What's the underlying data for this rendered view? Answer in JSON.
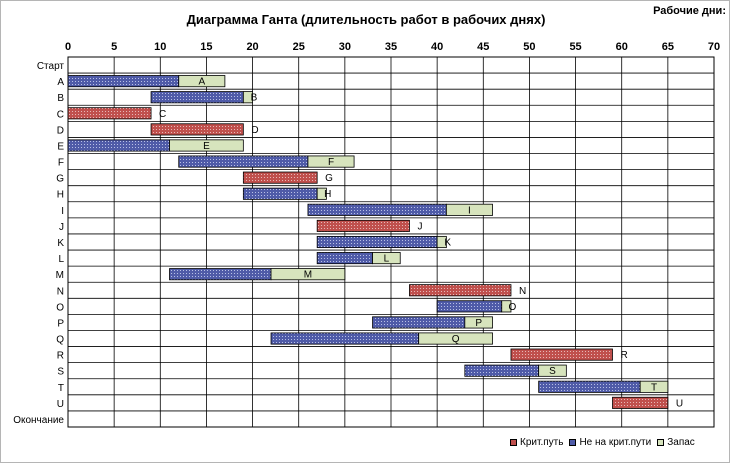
{
  "chart_data": {
    "type": "bar",
    "orientation": "horizontal-stacked",
    "title": "Диаграмма Ганта (длительность  работ в рабочих днях)",
    "axis_caption": "Рабочие дни:",
    "x_ticks": [
      0,
      5,
      10,
      15,
      20,
      25,
      30,
      35,
      40,
      45,
      50,
      55,
      60,
      65,
      70
    ],
    "xlim": [
      0,
      70
    ],
    "grid": true,
    "legend_position": "bottom-right",
    "categories": [
      "Старт",
      "A",
      "B",
      "C",
      "D",
      "E",
      "F",
      "G",
      "H",
      "I",
      "J",
      "K",
      "L",
      "M",
      "N",
      "O",
      "P",
      "Q",
      "R",
      "S",
      "T",
      "U",
      "Окончание"
    ],
    "series": [
      {
        "name": "Крит.путь",
        "color": "#c0504d",
        "pattern": "dots"
      },
      {
        "name": "Не на крит.пути",
        "color": "#4f5ba8",
        "pattern": "dots"
      },
      {
        "name": "Запас",
        "color": "#d7e4bd",
        "pattern": "solid"
      }
    ],
    "tasks": [
      {
        "name": "Старт",
        "start": 0,
        "segments": [],
        "label": ""
      },
      {
        "name": "A",
        "start": 0,
        "segments": [
          {
            "series": 1,
            "length": 12
          },
          {
            "series": 2,
            "length": 5
          }
        ],
        "label": "A"
      },
      {
        "name": "B",
        "start": 9,
        "segments": [
          {
            "series": 1,
            "length": 10
          },
          {
            "series": 2,
            "length": 1
          }
        ],
        "label": "B"
      },
      {
        "name": "C",
        "start": 0,
        "segments": [
          {
            "series": 0,
            "length": 9
          }
        ],
        "label": "C"
      },
      {
        "name": "D",
        "start": 9,
        "segments": [
          {
            "series": 0,
            "length": 10
          }
        ],
        "label": "D"
      },
      {
        "name": "E",
        "start": 0,
        "segments": [
          {
            "series": 1,
            "length": 11
          },
          {
            "series": 2,
            "length": 8
          }
        ],
        "label": "E"
      },
      {
        "name": "F",
        "start": 12,
        "segments": [
          {
            "series": 1,
            "length": 14
          },
          {
            "series": 2,
            "length": 5
          }
        ],
        "label": "F"
      },
      {
        "name": "G",
        "start": 19,
        "segments": [
          {
            "series": 0,
            "length": 8
          }
        ],
        "label": "G"
      },
      {
        "name": "H",
        "start": 19,
        "segments": [
          {
            "series": 1,
            "length": 8
          },
          {
            "series": 2,
            "length": 1
          }
        ],
        "label": "H"
      },
      {
        "name": "I",
        "start": 26,
        "segments": [
          {
            "series": 1,
            "length": 15
          },
          {
            "series": 2,
            "length": 5
          }
        ],
        "label": "I"
      },
      {
        "name": "J",
        "start": 27,
        "segments": [
          {
            "series": 0,
            "length": 10
          }
        ],
        "label": "J"
      },
      {
        "name": "K",
        "start": 27,
        "segments": [
          {
            "series": 1,
            "length": 13
          },
          {
            "series": 2,
            "length": 1
          }
        ],
        "label": "K"
      },
      {
        "name": "L",
        "start": 27,
        "segments": [
          {
            "series": 1,
            "length": 6
          },
          {
            "series": 2,
            "length": 3
          }
        ],
        "label": "L"
      },
      {
        "name": "M",
        "start": 11,
        "segments": [
          {
            "series": 1,
            "length": 11
          },
          {
            "series": 2,
            "length": 8
          }
        ],
        "label": "M"
      },
      {
        "name": "N",
        "start": 37,
        "segments": [
          {
            "series": 0,
            "length": 11
          }
        ],
        "label": "N"
      },
      {
        "name": "O",
        "start": 40,
        "segments": [
          {
            "series": 1,
            "length": 7
          },
          {
            "series": 2,
            "length": 1
          }
        ],
        "label": "O"
      },
      {
        "name": "P",
        "start": 33,
        "segments": [
          {
            "series": 1,
            "length": 10
          },
          {
            "series": 2,
            "length": 3
          }
        ],
        "label": "P"
      },
      {
        "name": "Q",
        "start": 22,
        "segments": [
          {
            "series": 1,
            "length": 16
          },
          {
            "series": 2,
            "length": 8
          }
        ],
        "label": "Q"
      },
      {
        "name": "R",
        "start": 48,
        "segments": [
          {
            "series": 0,
            "length": 11
          }
        ],
        "label": "R"
      },
      {
        "name": "S",
        "start": 43,
        "segments": [
          {
            "series": 1,
            "length": 8
          },
          {
            "series": 2,
            "length": 3
          }
        ],
        "label": "S"
      },
      {
        "name": "T",
        "start": 51,
        "segments": [
          {
            "series": 1,
            "length": 11
          },
          {
            "series": 2,
            "length": 3
          }
        ],
        "label": "T"
      },
      {
        "name": "U",
        "start": 59,
        "segments": [
          {
            "series": 0,
            "length": 6
          }
        ],
        "label": "U"
      },
      {
        "name": "Окончание",
        "start": 0,
        "segments": [],
        "label": ""
      }
    ]
  }
}
